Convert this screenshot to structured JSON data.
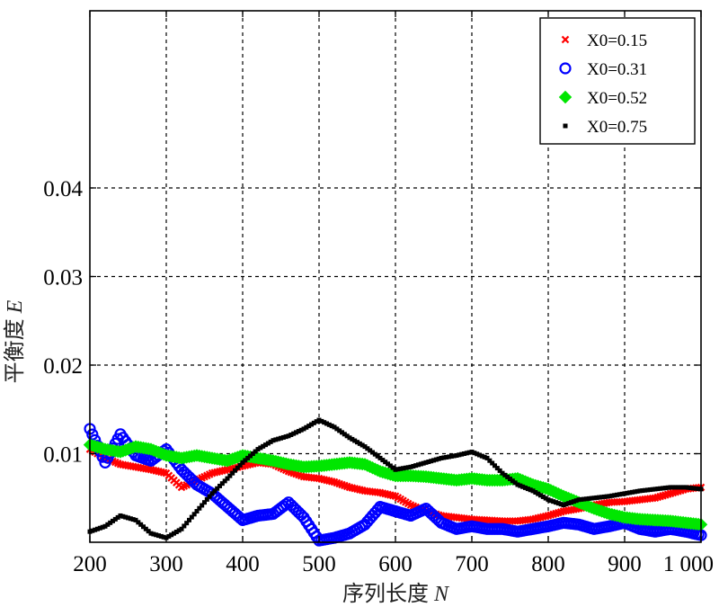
{
  "chart_data": {
    "type": "scatter",
    "title": "",
    "xlabel": "序列长度",
    "xlabel_var": "N",
    "ylabel": "平衡度",
    "ylabel_var": "E",
    "xlim": [
      200,
      1000
    ],
    "ylim": [
      0,
      0.06
    ],
    "x_ticks": [
      200,
      300,
      400,
      500,
      600,
      700,
      800,
      900,
      1000
    ],
    "x_tick_labels": [
      "200",
      "300",
      "400",
      "500",
      "600",
      "700",
      "800",
      "900",
      "1 000"
    ],
    "y_ticks": [
      0.01,
      0.02,
      0.03,
      0.04
    ],
    "y_tick_labels": [
      "0.01",
      "0.02",
      "0.03",
      "0.04"
    ],
    "grid": true,
    "legend_position": "top-right",
    "series": [
      {
        "name": "X0=0.15",
        "marker": "x",
        "color": "#ff0000",
        "x": [
          200,
          220,
          240,
          260,
          280,
          300,
          320,
          340,
          360,
          380,
          400,
          420,
          440,
          460,
          480,
          500,
          520,
          540,
          560,
          580,
          600,
          620,
          640,
          660,
          680,
          700,
          720,
          740,
          760,
          780,
          800,
          820,
          840,
          860,
          880,
          900,
          920,
          940,
          960,
          980,
          1000
        ],
        "y": [
          0.0105,
          0.0095,
          0.0088,
          0.0085,
          0.0082,
          0.0078,
          0.0062,
          0.007,
          0.0078,
          0.0082,
          0.0086,
          0.009,
          0.0088,
          0.008,
          0.0074,
          0.0072,
          0.0068,
          0.0062,
          0.0058,
          0.0056,
          0.0052,
          0.0042,
          0.0035,
          0.003,
          0.0028,
          0.0026,
          0.0025,
          0.0024,
          0.0024,
          0.0026,
          0.003,
          0.0035,
          0.0038,
          0.0042,
          0.0045,
          0.0046,
          0.0048,
          0.005,
          0.0055,
          0.006,
          0.0062
        ]
      },
      {
        "name": "X0=0.31",
        "marker": "o",
        "color": "#0000ff",
        "x": [
          200,
          220,
          240,
          260,
          280,
          300,
          320,
          340,
          360,
          380,
          400,
          420,
          440,
          460,
          480,
          500,
          520,
          540,
          560,
          580,
          600,
          620,
          640,
          660,
          680,
          700,
          720,
          740,
          760,
          780,
          800,
          820,
          840,
          860,
          880,
          900,
          920,
          940,
          960,
          980,
          1000
        ],
        "y": [
          0.0128,
          0.009,
          0.0122,
          0.0098,
          0.0092,
          0.0105,
          0.0082,
          0.0065,
          0.0055,
          0.004,
          0.0025,
          0.003,
          0.0032,
          0.0045,
          0.0028,
          0.0002,
          0.0005,
          0.001,
          0.002,
          0.004,
          0.0035,
          0.003,
          0.0038,
          0.0022,
          0.0015,
          0.0018,
          0.0015,
          0.0015,
          0.0012,
          0.0015,
          0.0018,
          0.0022,
          0.002,
          0.0015,
          0.0018,
          0.0022,
          0.0015,
          0.0012,
          0.0015,
          0.0012,
          0.0008
        ]
      },
      {
        "name": "X0=0.52",
        "marker": "diamond",
        "color": "#00e600",
        "x": [
          200,
          220,
          240,
          260,
          280,
          300,
          320,
          340,
          360,
          380,
          400,
          420,
          440,
          460,
          480,
          500,
          520,
          540,
          560,
          580,
          600,
          620,
          640,
          660,
          680,
          700,
          720,
          740,
          760,
          780,
          800,
          820,
          840,
          860,
          880,
          900,
          920,
          940,
          960,
          980,
          1000
        ],
        "y": [
          0.011,
          0.0105,
          0.0102,
          0.0108,
          0.0105,
          0.0098,
          0.0095,
          0.0098,
          0.0095,
          0.0092,
          0.0098,
          0.0095,
          0.0092,
          0.0088,
          0.0085,
          0.0086,
          0.0088,
          0.009,
          0.0088,
          0.008,
          0.0075,
          0.0075,
          0.0074,
          0.0072,
          0.007,
          0.0072,
          0.007,
          0.007,
          0.0072,
          0.0065,
          0.006,
          0.0052,
          0.0045,
          0.0038,
          0.0032,
          0.0028,
          0.0026,
          0.0025,
          0.0024,
          0.0022,
          0.002
        ]
      },
      {
        "name": "X0=0.75",
        "marker": "square",
        "color": "#000000",
        "x": [
          200,
          220,
          240,
          260,
          280,
          300,
          320,
          340,
          360,
          380,
          400,
          420,
          440,
          460,
          480,
          500,
          520,
          540,
          560,
          580,
          600,
          620,
          640,
          660,
          680,
          700,
          720,
          740,
          760,
          780,
          800,
          820,
          840,
          860,
          880,
          900,
          920,
          940,
          960,
          980,
          1000
        ],
        "y": [
          0.0012,
          0.0018,
          0.003,
          0.0025,
          0.001,
          0.0005,
          0.0015,
          0.0035,
          0.0055,
          0.0072,
          0.009,
          0.0105,
          0.0115,
          0.012,
          0.0128,
          0.0138,
          0.013,
          0.0118,
          0.0108,
          0.0095,
          0.0082,
          0.0085,
          0.009,
          0.0095,
          0.0098,
          0.0102,
          0.0095,
          0.0078,
          0.0065,
          0.0058,
          0.0048,
          0.0042,
          0.0048,
          0.005,
          0.0052,
          0.0055,
          0.0058,
          0.006,
          0.0062,
          0.0062,
          0.006
        ]
      }
    ]
  }
}
